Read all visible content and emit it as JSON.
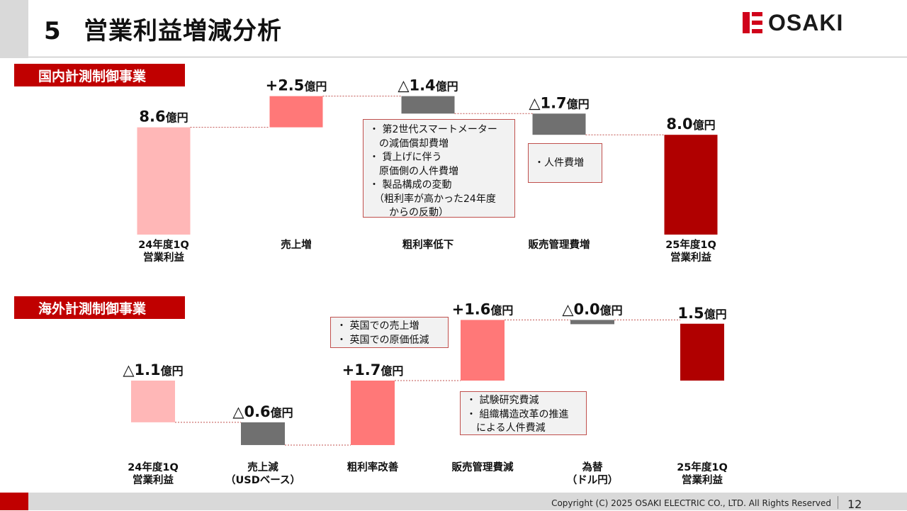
{
  "page": {
    "number": "5",
    "title": "営業利益増減分析",
    "logo": "OSAKI",
    "copyright": "Copyright (C) 2025 OSAKI ELECTRIC CO., LTD. All Rights Reserved",
    "page_number": "12"
  },
  "colors": {
    "accent": "#c00000",
    "prev_total": "#ffb7b7",
    "increase": "#ff7878",
    "decrease": "#707070",
    "curr_total": "#b00000"
  },
  "chart_data": [
    {
      "type": "waterfall",
      "title": "国内計測制御事業",
      "unit": "億円",
      "categories": [
        "24年度1Q\n営業利益",
        "売上増",
        "粗利率低下",
        "販売管理費増",
        "25年度1Q\n営業利益"
      ],
      "steps": [
        {
          "kind": "total",
          "value": 8.6,
          "label_num": "8.6",
          "label_unit": "億円"
        },
        {
          "kind": "delta",
          "value": 2.5,
          "label_num": "+2.5",
          "label_unit": "億円"
        },
        {
          "kind": "delta",
          "value": -1.4,
          "label_num": "△1.4",
          "label_unit": "億円"
        },
        {
          "kind": "delta",
          "value": -1.7,
          "label_num": "△1.7",
          "label_unit": "億円"
        },
        {
          "kind": "total",
          "value": 8.0,
          "label_num": "8.0",
          "label_unit": "億円"
        }
      ],
      "notes": [
        "・ 第2世代スマートメーター\n　の減価償却費増\n・ 賃上げに伴う\n　原価側の人件費増\n・ 製品構成の変動\n　（粗利率が高かった24年度\n　　からの反動）",
        "・人件費増"
      ]
    },
    {
      "type": "waterfall",
      "title": "海外計測制御事業",
      "unit": "億円",
      "categories": [
        "24年度1Q\n営業利益",
        "売上減\n（USDベース）",
        "粗利率改善",
        "販売管理費減",
        "為替\n（ドル円）",
        "25年度1Q\n営業利益"
      ],
      "steps": [
        {
          "kind": "total",
          "value": -1.1,
          "label_num": "△1.1",
          "label_unit": "億円"
        },
        {
          "kind": "delta",
          "value": -0.6,
          "label_num": "△0.6",
          "label_unit": "億円"
        },
        {
          "kind": "delta",
          "value": 1.7,
          "label_num": "+1.7",
          "label_unit": "億円"
        },
        {
          "kind": "delta",
          "value": 1.6,
          "label_num": "+1.6",
          "label_unit": "億円"
        },
        {
          "kind": "delta",
          "value": 0.0,
          "label_num": "△0.0",
          "label_unit": "億円"
        },
        {
          "kind": "total",
          "value": 1.5,
          "label_num": "1.5",
          "label_unit": "億円"
        }
      ],
      "notes": [
        "・ 英国での売上増\n・ 英国での原価低減",
        "・ 試験研究費減\n・ 組織構造改革の推進\n　による人件費減"
      ]
    }
  ]
}
